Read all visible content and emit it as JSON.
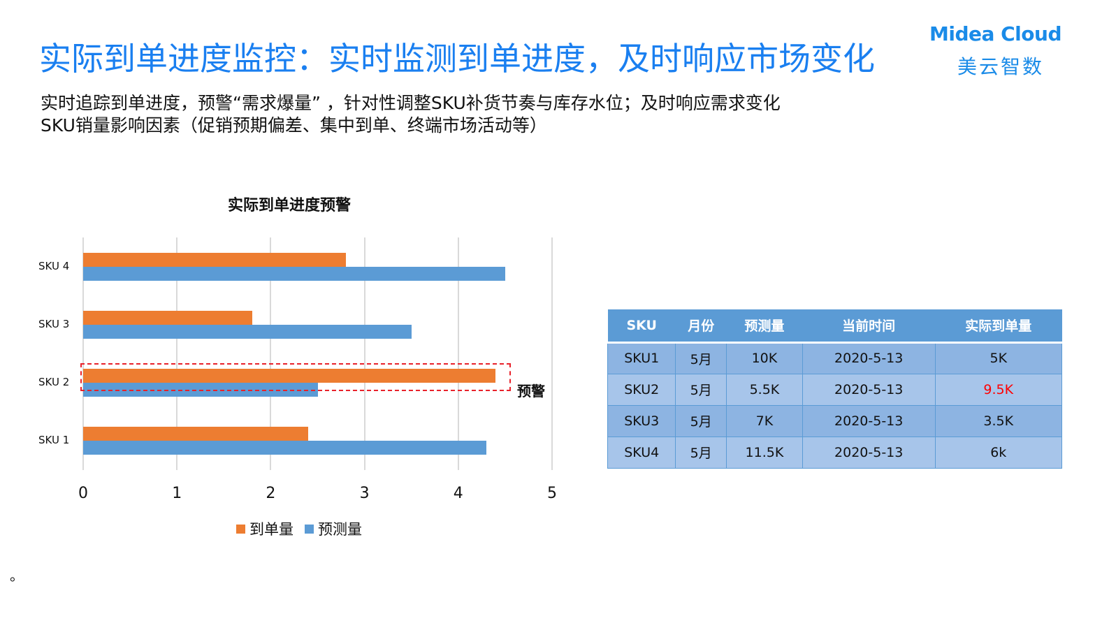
{
  "header": {
    "title": "实际到单进度监控：实时监测到单进度，及时响应市场变化",
    "logo_en": "Midea Cloud",
    "logo_cn": "美云智数"
  },
  "subtitle": {
    "line1": "实时追踪到单进度，预警“需求爆量” ，针对性调整SKU补货节奏与库存水位；及时响应需求变化",
    "line2": "SKU销量影响因素（促销预期偏差、集中到单、终端市场活动等）"
  },
  "chart_data": {
    "type": "bar",
    "orientation": "horizontal",
    "title": "实际到单进度预警",
    "categories": [
      "SKU 1",
      "SKU 2",
      "SKU 3",
      "SKU 4"
    ],
    "series": [
      {
        "name": "到单量",
        "color": "#ed7d31",
        "values": [
          2.4,
          4.4,
          1.8,
          2.8
        ]
      },
      {
        "name": "预测量",
        "color": "#5b9bd5",
        "values": [
          4.3,
          2.5,
          3.5,
          4.5
        ]
      }
    ],
    "xlabel": "",
    "ylabel": "",
    "xlim": [
      0,
      5
    ],
    "x_ticks": [
      "0",
      "1",
      "2",
      "3",
      "4",
      "5"
    ],
    "grid": true,
    "legend_position": "bottom",
    "annotations": [
      {
        "target": "SKU 2",
        "text": "预警",
        "style": "red dashed box"
      }
    ]
  },
  "table": {
    "headers": [
      "SKU",
      "月份",
      "预测量",
      "当前时间",
      "实际到单量"
    ],
    "rows": [
      [
        "SKU1",
        "5月",
        "10K",
        "2020-5-13",
        "5K"
      ],
      [
        "SKU2",
        "5月",
        "5.5K",
        "2020-5-13",
        "9.5K"
      ],
      [
        "SKU3",
        "5月",
        "7K",
        "2020-5-13",
        "3.5K"
      ],
      [
        "SKU4",
        "5月",
        "11.5K",
        "2020-5-13",
        "6k"
      ]
    ],
    "alert_color": "#ff0000"
  },
  "footnote": "。",
  "colors": {
    "title": "#1a7ff0",
    "brand": "#1a8be8",
    "orange": "#ed7d31",
    "blue": "#5b9bd5"
  }
}
